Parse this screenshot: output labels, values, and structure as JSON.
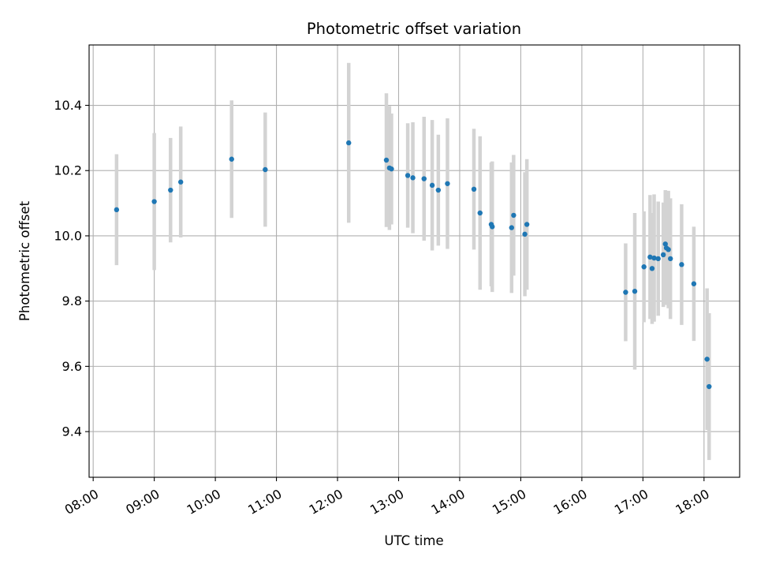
{
  "chart_data": {
    "type": "scatter",
    "title": "Photometric offset variation",
    "xlabel": "UTC time",
    "ylabel": "Photometric offset",
    "grid": true,
    "legend": "none",
    "xlim": [
      "07:56",
      "18:35"
    ],
    "ylim": [
      9.26,
      10.585
    ],
    "x_ticks": [
      "08:00",
      "09:00",
      "10:00",
      "11:00",
      "12:00",
      "13:00",
      "14:00",
      "15:00",
      "16:00",
      "17:00",
      "18:00"
    ],
    "y_ticks": [
      "9.4",
      "9.6",
      "9.8",
      "10.0",
      "10.2",
      "10.4"
    ],
    "colors": {
      "marker": "#1f77b4",
      "errorbar": "#d3d3d3",
      "grid": "#b0b0b0",
      "axes": "#000000"
    },
    "series": [
      {
        "points": [
          {
            "x": "08:23",
            "y": 10.08,
            "err": 0.17
          },
          {
            "x": "09:00",
            "y": 10.105,
            "err": 0.21
          },
          {
            "x": "09:16",
            "y": 10.14,
            "err": 0.16
          },
          {
            "x": "09:26",
            "y": 10.165,
            "err": 0.17
          },
          {
            "x": "10:16",
            "y": 10.235,
            "err": 0.18
          },
          {
            "x": "10:49",
            "y": 10.203,
            "err": 0.175
          },
          {
            "x": "12:11",
            "y": 10.285,
            "err": 0.245
          },
          {
            "x": "12:48",
            "y": 10.232,
            "err": 0.205
          },
          {
            "x": "12:51",
            "y": 10.208,
            "err": 0.19
          },
          {
            "x": "12:53",
            "y": 10.205,
            "err": 0.17
          },
          {
            "x": "13:09",
            "y": 10.185,
            "err": 0.16
          },
          {
            "x": "13:14",
            "y": 10.178,
            "err": 0.17
          },
          {
            "x": "13:25",
            "y": 10.175,
            "err": 0.19
          },
          {
            "x": "13:33",
            "y": 10.155,
            "err": 0.2
          },
          {
            "x": "13:39",
            "y": 10.14,
            "err": 0.17
          },
          {
            "x": "13:48",
            "y": 10.16,
            "err": 0.2
          },
          {
            "x": "14:14",
            "y": 10.143,
            "err": 0.185
          },
          {
            "x": "14:20",
            "y": 10.07,
            "err": 0.235
          },
          {
            "x": "14:31",
            "y": 10.035,
            "err": 0.19
          },
          {
            "x": "14:32",
            "y": 10.028,
            "err": 0.2
          },
          {
            "x": "14:51",
            "y": 10.025,
            "err": 0.2
          },
          {
            "x": "14:53",
            "y": 10.063,
            "err": 0.185
          },
          {
            "x": "15:04",
            "y": 10.005,
            "err": 0.19
          },
          {
            "x": "15:06",
            "y": 10.035,
            "err": 0.2
          },
          {
            "x": "16:43",
            "y": 9.827,
            "err": 0.15
          },
          {
            "x": "16:52",
            "y": 9.83,
            "err": 0.24
          },
          {
            "x": "17:01",
            "y": 9.905,
            "err": 0.17
          },
          {
            "x": "17:07",
            "y": 9.935,
            "err": 0.19
          },
          {
            "x": "17:09",
            "y": 9.9,
            "err": 0.17
          },
          {
            "x": "17:11",
            "y": 9.932,
            "err": 0.195
          },
          {
            "x": "17:15",
            "y": 9.93,
            "err": 0.175
          },
          {
            "x": "17:20",
            "y": 9.942,
            "err": 0.16
          },
          {
            "x": "17:22",
            "y": 9.975,
            "err": 0.165
          },
          {
            "x": "17:23",
            "y": 9.963,
            "err": 0.175
          },
          {
            "x": "17:25",
            "y": 9.958,
            "err": 0.18
          },
          {
            "x": "17:27",
            "y": 9.93,
            "err": 0.185
          },
          {
            "x": "17:38",
            "y": 9.912,
            "err": 0.185
          },
          {
            "x": "17:50",
            "y": 9.853,
            "err": 0.175
          },
          {
            "x": "18:03",
            "y": 9.622,
            "err": 0.217
          },
          {
            "x": "18:05",
            "y": 9.538,
            "err": 0.225
          }
        ]
      }
    ]
  }
}
